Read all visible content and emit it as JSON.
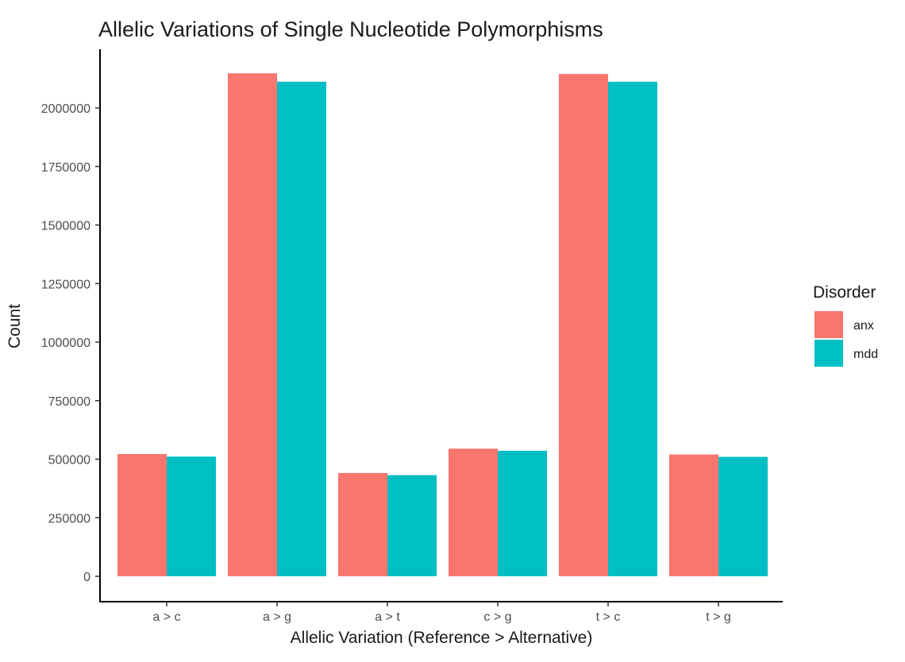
{
  "chart_data": {
    "type": "bar",
    "title": "Allelic Variations of Single Nucleotide Polymorphisms",
    "xlabel": "Allelic Variation (Reference > Alternative)",
    "ylabel": "Count",
    "categories": [
      "a > c",
      "a > g",
      "a > t",
      "c > g",
      "t > c",
      "t > g"
    ],
    "series": [
      {
        "name": "anx",
        "color": "#F8766D",
        "values": [
          522000,
          2148000,
          441000,
          545000,
          2145000,
          520000
        ]
      },
      {
        "name": "mdd",
        "color": "#00BFC4",
        "values": [
          511000,
          2112000,
          432000,
          536000,
          2112000,
          510000
        ]
      }
    ],
    "ylim": [
      0,
      2250000
    ],
    "y_ticks": [
      0,
      250000,
      500000,
      750000,
      1000000,
      1250000,
      1500000,
      1750000,
      2000000
    ],
    "y_tick_labels": [
      "0",
      "250000",
      "500000",
      "750000",
      "1000000",
      "1250000",
      "1500000",
      "1750000",
      "2000000"
    ],
    "grid": false,
    "legend": {
      "title": "Disorder",
      "placement": "right",
      "labels": [
        "anx",
        "mdd"
      ]
    }
  }
}
